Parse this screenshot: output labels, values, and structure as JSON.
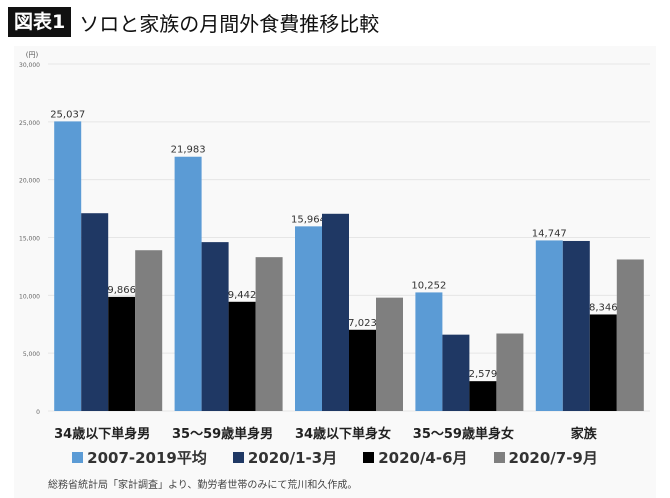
{
  "header": {
    "badge": "図表1",
    "title": "ソロと家族の月間外食費推移比較"
  },
  "note": "総務省統計局「家計調査」より、勤労者世帯のみにて荒川和久作成。",
  "chart_data": {
    "type": "bar",
    "title": "ソロと家族の月間外食費推移比較",
    "ylabel": "(円)",
    "ylim": [
      0,
      30000
    ],
    "yticks": [
      "0",
      "5,000",
      "10,000",
      "15,000",
      "20,000",
      "25,000",
      "30,000"
    ],
    "grid": true,
    "legend_position": "bottom",
    "categories": [
      "34歳以下単身男",
      "35～59歳単身男",
      "34歳以下単身女",
      "35～59歳単身女",
      "家族"
    ],
    "series": [
      {
        "name": "2007-2019平均",
        "color": "#5b9bd5",
        "values": [
          25037,
          21983,
          15964,
          10252,
          14747
        ],
        "labels": [
          "25,037",
          "21,983",
          "15,964",
          "10,252",
          "14,747"
        ]
      },
      {
        "name": "2020/1-3月",
        "color": "#1f3864",
        "values": [
          17100,
          14600,
          17050,
          6600,
          14700
        ],
        "labels": [
          "",
          "",
          "",
          "",
          ""
        ]
      },
      {
        "name": "2020/4-6月",
        "color": "#000000",
        "values": [
          9866,
          9442,
          7023,
          2579,
          8346
        ],
        "labels": [
          "9,866",
          "9,442",
          "7,023",
          "2,579",
          "8,346"
        ]
      },
      {
        "name": "2020/7-9月",
        "color": "#7f7f7f",
        "values": [
          13900,
          13300,
          9800,
          6700,
          13100
        ],
        "labels": [
          "",
          "",
          "",
          "",
          ""
        ]
      }
    ]
  }
}
